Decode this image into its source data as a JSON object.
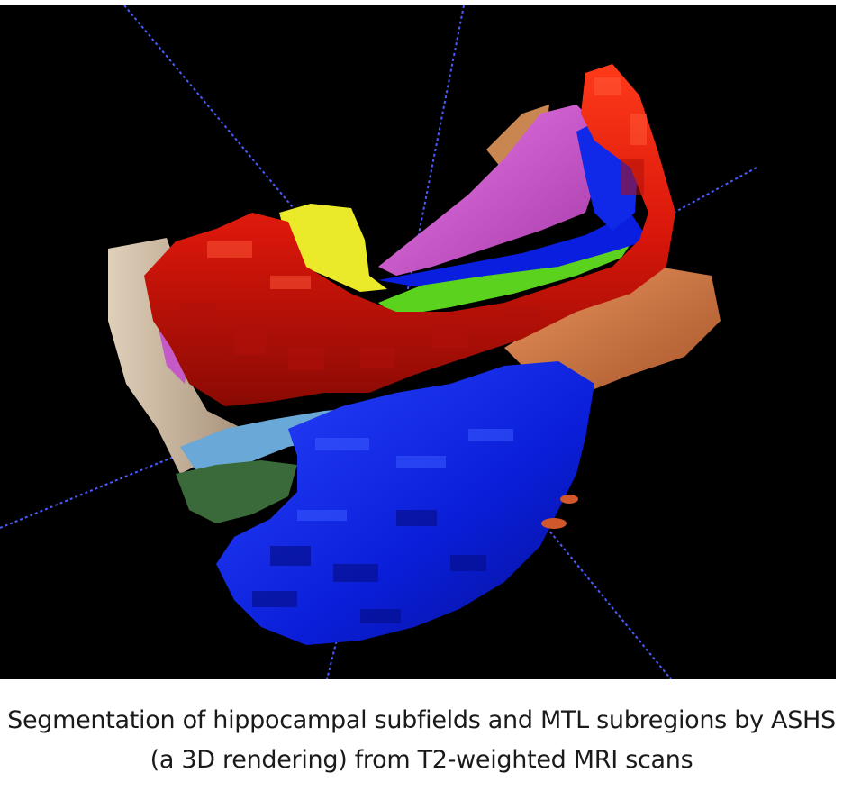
{
  "caption": {
    "line1": "Segmentation of hippocampal subfields and MTL subregions by ASHS",
    "line2": "(a 3D rendering) from T2-weighted MRI scans"
  },
  "colors": {
    "background": "#000000",
    "axis_line": "#4a5cff",
    "red_region": "#e01a0a",
    "dark_blue_region": "#0a1ee0",
    "light_blue_region": "#6aa8d8",
    "green_region": "#5ad21e",
    "dark_green_region": "#3a6a3a",
    "yellow_region": "#eaea2a",
    "magenta_region": "#d64fd8",
    "tan_region": "#c9b49a",
    "orange_region": "#d07a4a"
  }
}
